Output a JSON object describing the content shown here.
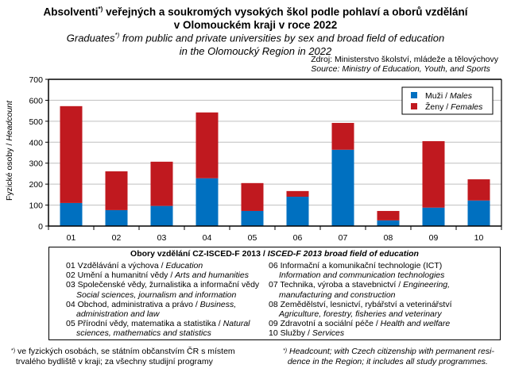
{
  "title": {
    "cz_main": "Absolventi",
    "cz_sup": "*)",
    "cz_rest": " veřejných a soukromých  vysokých  škol podle pohlaví a oborů vzdělání",
    "cz_line2": "v Olomouckém kraji v roce 2022",
    "en_main": "Graduates",
    "en_sup": "*)",
    "en_rest": " from public and private universities by sex and broad field of education",
    "en_line2": "in the Olomoucký Region in 2022"
  },
  "source": {
    "cz": "Zdroj: Ministerstvo školství, mládeže a tělovýchovy",
    "en": "Source: Ministry of Education, Youth, and Sports"
  },
  "colors": {
    "males": "#0070C0",
    "females": "#C0191F",
    "grid": "#BFBFBF"
  },
  "chart_data": {
    "type": "bar",
    "stacked": true,
    "title": "Absolventi veřejných a soukromých vysokých škol podle pohlaví a oborů vzdělání v Olomouckém kraji v roce 2022",
    "xlabel": "",
    "ylabel_cz": "Fyzické osoby",
    "ylabel_en": "Headcount",
    "ylim": [
      0,
      700
    ],
    "yticks": [
      0,
      100,
      200,
      300,
      400,
      500,
      600,
      700
    ],
    "grid": true,
    "legend_position": "top-right",
    "categories": [
      "01",
      "02",
      "03",
      "04",
      "05",
      "06",
      "07",
      "08",
      "09",
      "10"
    ],
    "series": [
      {
        "name_cz": "Muži",
        "name_en": "Males",
        "values": [
          110,
          76,
          96,
          228,
          72,
          140,
          364,
          27,
          88,
          122
        ]
      },
      {
        "name_cz": "Ženy",
        "name_en": "Females",
        "values": [
          462,
          185,
          211,
          314,
          133,
          27,
          128,
          45,
          317,
          101
        ]
      }
    ]
  },
  "fields": {
    "heading_cz": "Obory vzdělání CZ-ISCED-F 2013 / ",
    "heading_en": "ISCED-F 2013 broad field of education",
    "left": [
      {
        "cz": "01 Vzdělávání a výchova / ",
        "en": "Education",
        "cont": ""
      },
      {
        "cz": "02 Umění a humanitní vědy / ",
        "en": "Arts and humanities",
        "cont": ""
      },
      {
        "cz": "03 Společenské vědy, žurnalistika a informační vědy",
        "en": "",
        "cont": "Social sciences, journalism and information"
      },
      {
        "cz": "04 Obchod, administrativa a právo / ",
        "en": "Business,",
        "cont": "administration and law"
      },
      {
        "cz": "05 Přírodní vědy, matematika a statistika / ",
        "en": "Natural",
        "cont": "sciences, mathematics and statistics"
      }
    ],
    "right": [
      {
        "cz": "06 Informační a komunikační technologie (ICT)",
        "en": "",
        "cont": "Information and communication technologies"
      },
      {
        "cz": "07 Technika, výroba a stavebnictví / ",
        "en": "Engineering,",
        "cont": "manufacturing and construction"
      },
      {
        "cz": "08 Zemědělství, lesnictví, rybářství a veterinářství",
        "en": "",
        "cont": "Agriculture, forestry, fisheries and veterinary"
      },
      {
        "cz": "09 Zdravotní a sociální péče / ",
        "en": "Health and welfare",
        "cont": ""
      },
      {
        "cz": "10 Služby / ",
        "en": "Services",
        "cont": ""
      }
    ]
  },
  "footnotes": {
    "mark": "*)",
    "cz_line1": "ve fyzických osobách, se státním občanstvím ČR  s místem",
    "cz_line2": "trvalého bydliště v kraji;  za všechny studijní programy",
    "en_line1": "Headcount; with Czech citizenship with permanent resi-",
    "en_line2": "dence in the Region; it includes all study programmes."
  }
}
